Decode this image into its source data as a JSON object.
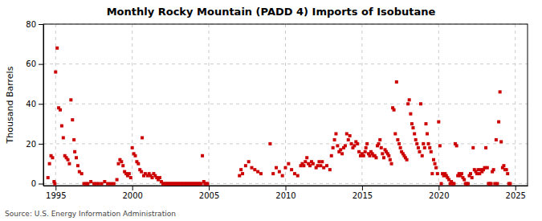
{
  "chart_data": {
    "type": "scatter",
    "title": "Monthly Rocky Mountain (PADD 4) Imports of Isobutane",
    "ylabel": "Thousand Barrels",
    "source": "Source: U.S. Energy Information Administration",
    "color": "#cc0000",
    "marker": "square",
    "grid": true,
    "xlim": [
      1994.2,
      2025.8
    ],
    "ylim": [
      -1,
      80
    ],
    "xticks": [
      1995,
      2000,
      2005,
      2010,
      2015,
      2020,
      2025
    ],
    "yticks": [
      0,
      20,
      40,
      60,
      80
    ],
    "x": [
      1994.5,
      1994.6,
      1994.7,
      1994.8,
      1994.9,
      1994.95,
      1995.0,
      1995.1,
      1995.2,
      1995.3,
      1995.4,
      1995.5,
      1995.6,
      1995.7,
      1995.8,
      1995.9,
      1996.0,
      1996.1,
      1996.2,
      1996.25,
      1996.35,
      1996.45,
      1996.55,
      1996.7,
      1996.85,
      1997.0,
      1997.1,
      1997.3,
      1997.5,
      1997.65,
      1997.8,
      1998.0,
      1998.2,
      1998.4,
      1998.6,
      1998.8,
      1999.0,
      1999.1,
      1999.2,
      1999.3,
      1999.4,
      1999.5,
      1999.6,
      1999.7,
      1999.8,
      1999.9,
      2000.0,
      2000.1,
      2000.2,
      2000.3,
      2000.4,
      2000.5,
      2000.6,
      2000.65,
      2000.75,
      2000.85,
      2001.0,
      2001.1,
      2001.2,
      2001.3,
      2001.4,
      2001.5,
      2001.6,
      2001.7,
      2001.8,
      2001.9,
      2002.0,
      2002.08,
      2002.17,
      2002.25,
      2002.33,
      2002.42,
      2002.5,
      2002.58,
      2002.67,
      2002.75,
      2002.83,
      2002.92,
      2003.0,
      2003.08,
      2003.17,
      2003.25,
      2003.33,
      2003.42,
      2003.5,
      2003.58,
      2003.67,
      2003.75,
      2003.83,
      2003.92,
      2004.0,
      2004.08,
      2004.17,
      2004.25,
      2004.33,
      2004.42,
      2004.5,
      2004.58,
      2004.67,
      2004.75,
      2004.83,
      2004.92,
      2007.0,
      2007.1,
      2007.2,
      2007.4,
      2007.6,
      2007.8,
      2008.0,
      2008.2,
      2008.4,
      2009.0,
      2009.2,
      2009.4,
      2009.6,
      2009.8,
      2010.0,
      2010.2,
      2010.4,
      2010.6,
      2010.8,
      2011.0,
      2011.1,
      2011.2,
      2011.3,
      2011.4,
      2011.5,
      2011.6,
      2011.7,
      2011.8,
      2012.0,
      2012.1,
      2012.2,
      2012.3,
      2012.4,
      2012.5,
      2012.7,
      2012.9,
      2013.0,
      2013.1,
      2013.2,
      2013.3,
      2013.4,
      2013.5,
      2013.6,
      2013.7,
      2013.8,
      2013.9,
      2014.0,
      2014.1,
      2014.2,
      2014.3,
      2014.4,
      2014.5,
      2014.6,
      2014.7,
      2014.8,
      2014.9,
      2015.0,
      2015.1,
      2015.2,
      2015.25,
      2015.33,
      2015.42,
      2015.5,
      2015.58,
      2015.67,
      2015.75,
      2015.83,
      2015.92,
      2016.0,
      2016.08,
      2016.17,
      2016.25,
      2016.33,
      2016.42,
      2016.5,
      2016.58,
      2016.67,
      2016.75,
      2016.83,
      2016.92,
      2017.0,
      2017.08,
      2017.17,
      2017.25,
      2017.33,
      2017.42,
      2017.5,
      2017.58,
      2017.67,
      2017.75,
      2017.83,
      2017.92,
      2018.0,
      2018.08,
      2018.17,
      2018.25,
      2018.33,
      2018.42,
      2018.5,
      2018.58,
      2018.67,
      2018.75,
      2018.83,
      2018.92,
      2019.0,
      2019.08,
      2019.17,
      2019.25,
      2019.33,
      2019.42,
      2019.5,
      2019.58,
      2019.67,
      2019.75,
      2019.83,
      2019.92,
      2020.0,
      2020.08,
      2020.17,
      2020.25,
      2020.33,
      2020.42,
      2020.5,
      2020.58,
      2020.67,
      2020.75,
      2020.83,
      2020.92,
      2021.0,
      2021.08,
      2021.17,
      2021.25,
      2021.33,
      2021.42,
      2021.5,
      2021.58,
      2021.67,
      2021.75,
      2021.83,
      2021.92,
      2022.0,
      2022.08,
      2022.17,
      2022.25,
      2022.33,
      2022.42,
      2022.5,
      2022.58,
      2022.67,
      2022.75,
      2022.83,
      2022.92,
      2023.0,
      2023.08,
      2023.17,
      2023.25,
      2023.33,
      2023.42,
      2023.5,
      2023.58,
      2023.67,
      2023.75,
      2023.83,
      2023.92,
      2024.0,
      2024.08,
      2024.17,
      2024.25,
      2024.33,
      2024.42,
      2024.5,
      2024.58,
      2024.67
    ],
    "values": [
      3,
      10,
      14,
      13,
      1,
      0,
      56,
      68,
      38,
      37,
      29,
      23,
      14,
      13,
      12,
      10,
      42,
      32,
      22,
      16,
      13,
      9,
      6,
      5,
      0,
      0,
      0,
      1,
      0,
      0,
      0,
      0,
      1,
      0,
      0,
      0,
      2,
      10,
      12,
      11,
      9,
      6,
      5,
      4,
      5,
      3,
      18,
      15,
      14,
      11,
      10,
      7,
      6,
      23,
      4,
      5,
      4,
      5,
      4,
      3,
      5,
      4,
      3,
      2,
      3,
      1,
      0,
      0,
      0,
      0,
      0,
      0,
      0,
      0,
      0,
      0,
      0,
      0,
      0,
      0,
      0,
      0,
      0,
      0,
      0,
      0,
      0,
      0,
      0,
      0,
      0,
      0,
      0,
      0,
      0,
      0,
      0,
      14,
      1,
      0,
      0,
      0,
      4,
      7,
      5,
      9,
      11,
      8,
      7,
      6,
      5,
      20,
      5,
      8,
      6,
      4,
      8,
      10,
      7,
      5,
      4,
      9,
      10,
      9,
      11,
      13,
      10,
      9,
      11,
      10,
      8,
      9,
      11,
      9,
      11,
      8,
      9,
      7,
      14,
      18,
      22,
      25,
      19,
      16,
      17,
      15,
      18,
      19,
      25,
      22,
      24,
      20,
      18,
      19,
      21,
      20,
      16,
      14,
      15,
      14,
      16,
      18,
      20,
      15,
      14,
      16,
      15,
      14,
      14,
      13,
      19,
      20,
      22,
      18,
      15,
      13,
      17,
      16,
      15,
      14,
      12,
      10,
      38,
      37,
      25,
      51,
      22,
      20,
      18,
      16,
      15,
      14,
      13,
      12,
      40,
      42,
      35,
      30,
      28,
      25,
      22,
      20,
      18,
      16,
      40,
      14,
      20,
      18,
      30,
      25,
      20,
      18,
      16,
      5,
      12,
      10,
      8,
      5,
      31,
      19,
      0,
      5,
      4,
      5,
      4,
      3,
      2,
      0,
      1,
      0,
      0,
      20,
      19,
      4,
      5,
      4,
      5,
      3,
      2,
      0,
      0,
      0,
      4,
      5,
      3,
      18,
      7,
      6,
      5,
      7,
      5,
      7,
      6,
      7,
      8,
      18,
      8,
      0,
      0,
      0,
      6,
      7,
      0,
      22,
      0,
      31,
      46,
      21,
      8,
      9,
      7,
      7,
      5,
      0,
      0
    ]
  }
}
